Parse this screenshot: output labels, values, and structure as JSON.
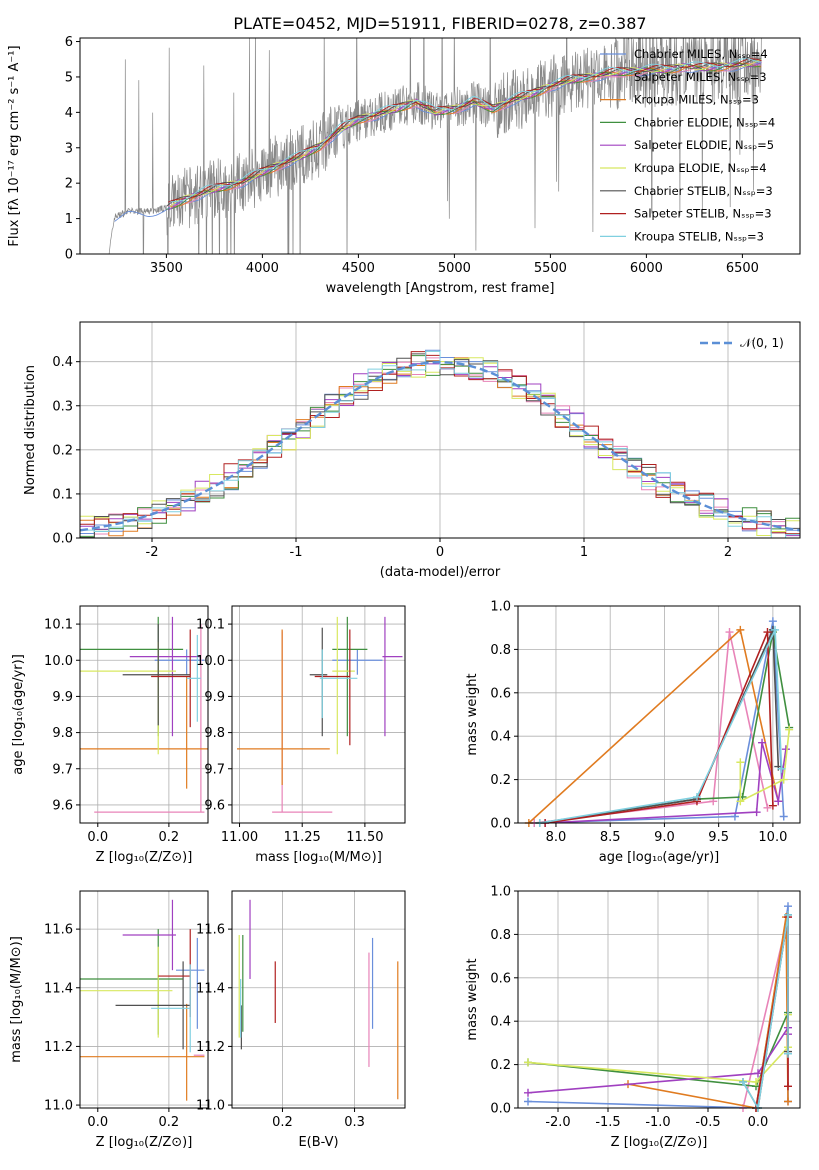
{
  "title": "PLATE=0452, MJD=51911, FIBERID=0278, z=0.387",
  "model_colors": [
    "#6a8fdb",
    "#e884b8",
    "#e07b20",
    "#3f8f3f",
    "#a040c0",
    "#d8e860",
    "#505050",
    "#b02020",
    "#80d0e0"
  ],
  "chart_data": [
    {
      "id": "spectrum",
      "type": "line",
      "xlabel": "wavelength [Angstrom, rest frame]",
      "ylabel": "Flux [fλ 10⁻¹⁷ erg cm⁻² s⁻¹ A⁻¹]",
      "xlim": [
        3050,
        6800
      ],
      "ylim": [
        0,
        6.1
      ],
      "xticks": [
        3500,
        4000,
        4500,
        5000,
        5500,
        6000,
        6500
      ],
      "yticks": [
        0,
        1,
        2,
        3,
        4,
        5,
        6
      ],
      "legend_position": "upper-right",
      "series": [
        {
          "name": "Chabrier MILES, N_SSP=4"
        },
        {
          "name": "Salpeter MILES, N_SSP=3"
        },
        {
          "name": "Kroupa MILES, N_SSP=3"
        },
        {
          "name": "Chabrier ELODIE, N_SSP=4"
        },
        {
          "name": "Salpeter ELODIE, N_SSP=5"
        },
        {
          "name": "Kroupa ELODIE, N_SSP=4"
        },
        {
          "name": "Chabrier STELIB, N_SSP=3"
        },
        {
          "name": "Salpeter STELIB, N_SSP=3"
        },
        {
          "name": "Kroupa STELIB, N_SSP=3"
        }
      ],
      "data_envelope": {
        "x": [
          3200,
          3230,
          3300,
          3400,
          3500,
          3600,
          3700,
          3800,
          3900,
          4000,
          4100,
          4200,
          4300,
          4400,
          4500,
          4600,
          4700,
          4800,
          4900,
          5000,
          5100,
          5200,
          5300,
          5400,
          5500,
          5600,
          5700,
          5800,
          5900,
          6000,
          6100,
          6200,
          6300,
          6400,
          6500,
          6600
        ],
        "y": [
          0,
          1.05,
          1.2,
          1.2,
          1.3,
          1.55,
          1.75,
          1.9,
          2.05,
          2.3,
          2.55,
          2.75,
          3.05,
          3.5,
          3.8,
          3.95,
          4.1,
          4.3,
          4.0,
          4.1,
          4.3,
          4.1,
          4.35,
          4.5,
          4.75,
          4.9,
          5.0,
          5.1,
          5.15,
          5.2,
          5.2,
          5.3,
          5.25,
          5.3,
          5.35,
          5.4
        ]
      }
    },
    {
      "id": "residuals",
      "type": "histogram",
      "xlabel": "(data-model)/error",
      "ylabel": "Normed distribution",
      "xlim": [
        -2.5,
        2.5
      ],
      "ylim": [
        0,
        0.49
      ],
      "xticks": [
        -2,
        -1,
        0,
        1,
        2
      ],
      "yticks": [
        0,
        0.1,
        0.2,
        0.3,
        0.4
      ],
      "legend": "𝒩(0, 1)",
      "bin_width": 0.1
    },
    {
      "id": "age-vs-Z",
      "type": "scatter",
      "xlabel": "Z [log₁₀(Z/Z⊙)]",
      "ylabel": "age  [log₁₀(age/yr)]",
      "xlim": [
        -0.05,
        0.31
      ],
      "ylim": [
        9.55,
        10.15
      ],
      "xticks": [
        0.0,
        0.2
      ],
      "yticks": [
        9.6,
        9.7,
        9.8,
        9.9,
        10.0,
        10.1
      ],
      "points": [
        {
          "x": 0.25,
          "xerr": [
            0.09,
            0.05
          ],
          "y": 10.0,
          "yerr": [
            0.04,
            0.03
          ],
          "c": 0
        },
        {
          "x": 0.29,
          "xerr": [
            0.3,
            0.01
          ],
          "y": 9.58,
          "yerr": [
            0.0,
            0.52
          ],
          "c": 1
        },
        {
          "x": 0.25,
          "xerr": [
            0.3,
            0.06
          ],
          "y": 9.755,
          "yerr": [
            0.11,
            0.2
          ],
          "c": 2
        },
        {
          "x": 0.17,
          "xerr": [
            0.22,
            0.07
          ],
          "y": 10.03,
          "yerr": [
            0.24,
            0.09
          ],
          "c": 3
        },
        {
          "x": 0.21,
          "xerr": [
            0.12,
            0.08
          ],
          "y": 10.01,
          "yerr": [
            0.22,
            0.11
          ],
          "c": 4
        },
        {
          "x": 0.17,
          "xerr": [
            0.22,
            0.05
          ],
          "y": 9.97,
          "yerr": [
            0.23,
            0.08
          ],
          "c": 5
        },
        {
          "x": 0.17,
          "xerr": [
            0.1,
            0.09
          ],
          "y": 9.96,
          "yerr": [
            0.14,
            0.14
          ],
          "c": 6
        },
        {
          "x": 0.26,
          "xerr": [
            0.11,
            0.0
          ],
          "y": 9.955,
          "yerr": [
            0.14,
            0.13
          ],
          "c": 7
        },
        {
          "x": 0.28,
          "xerr": [
            0.03,
            0.01
          ],
          "y": 9.95,
          "yerr": [
            0.12,
            0.12
          ],
          "c": 8
        }
      ]
    },
    {
      "id": "age-vs-mass",
      "type": "scatter",
      "xlabel": "mass [log₁₀(M/M⊙)]",
      "xlim": [
        10.97,
        11.66
      ],
      "ylim": [
        9.55,
        10.15
      ],
      "xticks": [
        11.0,
        11.25,
        11.5
      ],
      "yticks": [
        9.6,
        9.7,
        9.8,
        9.9,
        10.0,
        10.1
      ],
      "points": [
        {
          "x": 11.47,
          "xerr": [
            0.1,
            0.1
          ],
          "y": 10.0,
          "yerr": [
            0.04,
            0.03
          ],
          "c": 0
        },
        {
          "x": 11.17,
          "xerr": [
            0.04,
            0.2
          ],
          "y": 9.58,
          "yerr": [
            0.0,
            0.5
          ],
          "c": 1
        },
        {
          "x": 11.17,
          "xerr": [
            0.18,
            0.19
          ],
          "y": 9.755,
          "yerr": [
            0.1,
            0.33
          ],
          "c": 2
        },
        {
          "x": 11.43,
          "xerr": [
            0.06,
            0.08
          ],
          "y": 10.03,
          "yerr": [
            0.24,
            0.09
          ],
          "c": 3
        },
        {
          "x": 11.58,
          "xerr": [
            0.01,
            0.07
          ],
          "y": 10.01,
          "yerr": [
            0.22,
            0.11
          ],
          "c": 4
        },
        {
          "x": 11.39,
          "xerr": [
            0.02,
            0.07
          ],
          "y": 9.97,
          "yerr": [
            0.23,
            0.15
          ],
          "c": 5
        },
        {
          "x": 11.33,
          "xerr": [
            0.05,
            0.02
          ],
          "y": 9.96,
          "yerr": [
            0.17,
            0.13
          ],
          "c": 6
        },
        {
          "x": 11.44,
          "xerr": [
            0.14,
            0.0
          ],
          "y": 9.955,
          "yerr": [
            0.19,
            0.13
          ],
          "c": 7
        },
        {
          "x": 11.33,
          "xerr": [
            0.01,
            0.14
          ],
          "y": 9.95,
          "yerr": [
            0.11,
            0.08
          ],
          "c": 8
        }
      ]
    },
    {
      "id": "mass-weight-vs-age",
      "type": "line",
      "xlabel": "age  [log₁₀(age/yr)]",
      "ylabel": "mass weight",
      "xlim": [
        7.65,
        10.25
      ],
      "ylim": [
        0,
        1.0
      ],
      "xticks": [
        8.0,
        8.5,
        9.0,
        9.5,
        10.0
      ],
      "yticks": [
        0.0,
        0.2,
        0.4,
        0.6,
        0.8,
        1.0
      ],
      "series": [
        {
          "c": 0,
          "points": [
            [
              7.8,
              0.0
            ],
            [
              9.65,
              0.03
            ],
            [
              10.0,
              0.93
            ],
            [
              10.1,
              0.03
            ]
          ]
        },
        {
          "c": 1,
          "points": [
            [
              7.8,
              0.0
            ],
            [
              9.45,
              0.1
            ],
            [
              9.6,
              0.88
            ],
            [
              9.95,
              0.07
            ]
          ]
        },
        {
          "c": 2,
          "points": [
            [
              7.75,
              0.0
            ],
            [
              9.7,
              0.89
            ],
            [
              10.05,
              0.1
            ]
          ]
        },
        {
          "c": 3,
          "points": [
            [
              7.85,
              0.0
            ],
            [
              9.3,
              0.11
            ],
            [
              9.72,
              0.12
            ],
            [
              10.0,
              0.88
            ],
            [
              10.15,
              0.44
            ]
          ]
        },
        {
          "c": 4,
          "points": [
            [
              7.9,
              0.0
            ],
            [
              9.85,
              0.05
            ],
            [
              9.9,
              0.37
            ],
            [
              10.05,
              0.1
            ],
            [
              10.12,
              0.34
            ]
          ]
        },
        {
          "c": 5,
          "points": [
            [
              9.7,
              0.28
            ],
            [
              9.7,
              0.1
            ],
            [
              10.1,
              0.2
            ],
            [
              10.15,
              0.43
            ]
          ]
        },
        {
          "c": 6,
          "points": [
            [
              7.85,
              0.0
            ],
            [
              9.3,
              0.11
            ],
            [
              10.0,
              0.89
            ],
            [
              10.05,
              0.26
            ]
          ]
        },
        {
          "c": 7,
          "points": [
            [
              7.9,
              0.0
            ],
            [
              9.3,
              0.1
            ],
            [
              9.95,
              0.88
            ],
            [
              10.0,
              0.08
            ]
          ]
        },
        {
          "c": 8,
          "points": [
            [
              7.85,
              0.0
            ],
            [
              9.3,
              0.12
            ],
            [
              10.02,
              0.89
            ],
            [
              10.08,
              0.25
            ]
          ]
        }
      ]
    },
    {
      "id": "mass-vs-Z",
      "type": "scatter",
      "xlabel": "Z [log₁₀(Z/Z⊙)]",
      "ylabel": "mass [log₁₀(M/M⊙)]",
      "xlim": [
        -0.05,
        0.31
      ],
      "ylim": [
        10.99,
        11.73
      ],
      "xticks": [
        0.0,
        0.2
      ],
      "yticks": [
        11.0,
        11.2,
        11.4,
        11.6
      ],
      "points": [
        {
          "x": 0.28,
          "xerr": [
            0.06,
            0.02
          ],
          "y": 11.46,
          "yerr": [
            0.2,
            0.11
          ],
          "c": 0
        },
        {
          "x": 0.29,
          "xerr": [
            0.02,
            0.01
          ],
          "y": 11.17,
          "yerr": [
            0.0,
            0.0
          ],
          "c": 1
        },
        {
          "x": 0.25,
          "xerr": [
            0.3,
            0.05
          ],
          "y": 11.165,
          "yerr": [
            0.15,
            0.18
          ],
          "c": 2
        },
        {
          "x": 0.17,
          "xerr": [
            0.22,
            0.07
          ],
          "y": 11.43,
          "yerr": [
            0.19,
            0.17
          ],
          "c": 3
        },
        {
          "x": 0.21,
          "xerr": [
            0.14,
            0.01
          ],
          "y": 11.58,
          "yerr": [
            0.12,
            0.12
          ],
          "c": 4
        },
        {
          "x": 0.17,
          "xerr": [
            0.22,
            0.04
          ],
          "y": 11.39,
          "yerr": [
            0.16,
            0.15
          ],
          "c": 5
        },
        {
          "x": 0.24,
          "xerr": [
            0.19,
            0.02
          ],
          "y": 11.34,
          "yerr": [
            0.15,
            0.15
          ],
          "c": 6
        },
        {
          "x": 0.26,
          "xerr": [
            0.09,
            0.0
          ],
          "y": 11.44,
          "yerr": [
            0.14,
            0.16
          ],
          "c": 7
        },
        {
          "x": 0.26,
          "xerr": [
            0.11,
            0.0
          ],
          "y": 11.33,
          "yerr": [
            0.15,
            0.15
          ],
          "c": 8
        }
      ]
    },
    {
      "id": "mass-vs-EBV",
      "type": "scatter",
      "xlabel": "E(B-V)",
      "xlim": [
        0.13,
        0.37
      ],
      "ylim": [
        10.99,
        11.73
      ],
      "xticks": [
        0.2,
        0.3
      ],
      "yticks": [
        11.0,
        11.2,
        11.4,
        11.6
      ],
      "points": [
        {
          "x": 0.325,
          "y": 11.46,
          "yerr": [
            0.2,
            0.11
          ],
          "c": 0
        },
        {
          "x": 0.32,
          "y": 11.33,
          "yerr": [
            0.2,
            0.19
          ],
          "c": 1
        },
        {
          "x": 0.36,
          "y": 11.17,
          "yerr": [
            0.15,
            0.32
          ],
          "c": 2
        },
        {
          "x": 0.145,
          "y": 11.42,
          "yerr": [
            0.17,
            0.16
          ],
          "c": 3
        },
        {
          "x": 0.155,
          "y": 11.58,
          "yerr": [
            0.15,
            0.12
          ],
          "c": 4
        },
        {
          "x": 0.14,
          "y": 11.42,
          "yerr": [
            0.19,
            0.16
          ],
          "c": 5
        },
        {
          "x": 0.143,
          "y": 11.28,
          "yerr": [
            0.09,
            0.06
          ],
          "c": 6
        },
        {
          "x": 0.19,
          "y": 11.37,
          "yerr": [
            0.09,
            0.12
          ],
          "c": 7
        },
        {
          "x": 0.142,
          "y": 11.33,
          "yerr": [
            0.1,
            0.1
          ],
          "c": 8
        }
      ]
    },
    {
      "id": "mass-weight-vs-Z",
      "type": "line",
      "xlabel": "Z [log₁₀(Z/Z⊙)]",
      "ylabel": "mass weight",
      "xlim": [
        -2.4,
        0.42
      ],
      "ylim": [
        0,
        1.0
      ],
      "xticks": [
        -2.0,
        -1.5,
        -1.0,
        -0.5,
        0.0
      ],
      "yticks": [
        0.0,
        0.2,
        0.4,
        0.6,
        0.8,
        1.0
      ],
      "series": [
        {
          "c": 0,
          "points": [
            [
              -2.3,
              0.03
            ],
            [
              -0.02,
              0.0
            ],
            [
              0.3,
              0.93
            ],
            [
              0.3,
              0.03
            ]
          ]
        },
        {
          "c": 1,
          "points": [
            [
              -0.15,
              0.0
            ],
            [
              0.3,
              0.88
            ],
            [
              0.3,
              0.1
            ]
          ]
        },
        {
          "c": 2,
          "points": [
            [
              -1.3,
              0.11
            ],
            [
              -0.02,
              0.0
            ],
            [
              0.28,
              0.88
            ],
            [
              0.3,
              0.03
            ]
          ]
        },
        {
          "c": 3,
          "points": [
            [
              -2.3,
              0.21
            ],
            [
              -0.02,
              0.1
            ],
            [
              0.3,
              0.44
            ],
            [
              0.3,
              0.25
            ]
          ]
        },
        {
          "c": 4,
          "points": [
            [
              -2.3,
              0.07
            ],
            [
              0.0,
              0.16
            ],
            [
              0.3,
              0.37
            ],
            [
              0.3,
              0.34
            ]
          ]
        },
        {
          "c": 5,
          "points": [
            [
              -2.3,
              0.21
            ],
            [
              -0.02,
              0.12
            ],
            [
              0.3,
              0.28
            ],
            [
              0.3,
              0.43
            ]
          ]
        },
        {
          "c": 6,
          "points": [
            [
              -0.15,
              0.12
            ],
            [
              0.0,
              0.0
            ],
            [
              0.3,
              0.89
            ],
            [
              0.3,
              0.26
            ]
          ]
        },
        {
          "c": 7,
          "points": [
            [
              -0.02,
              0.0
            ],
            [
              0.3,
              0.88
            ],
            [
              0.3,
              0.1
            ]
          ]
        },
        {
          "c": 8,
          "points": [
            [
              -0.15,
              0.12
            ],
            [
              0.0,
              0.0
            ],
            [
              0.3,
              0.89
            ],
            [
              0.3,
              0.25
            ]
          ]
        }
      ]
    }
  ]
}
